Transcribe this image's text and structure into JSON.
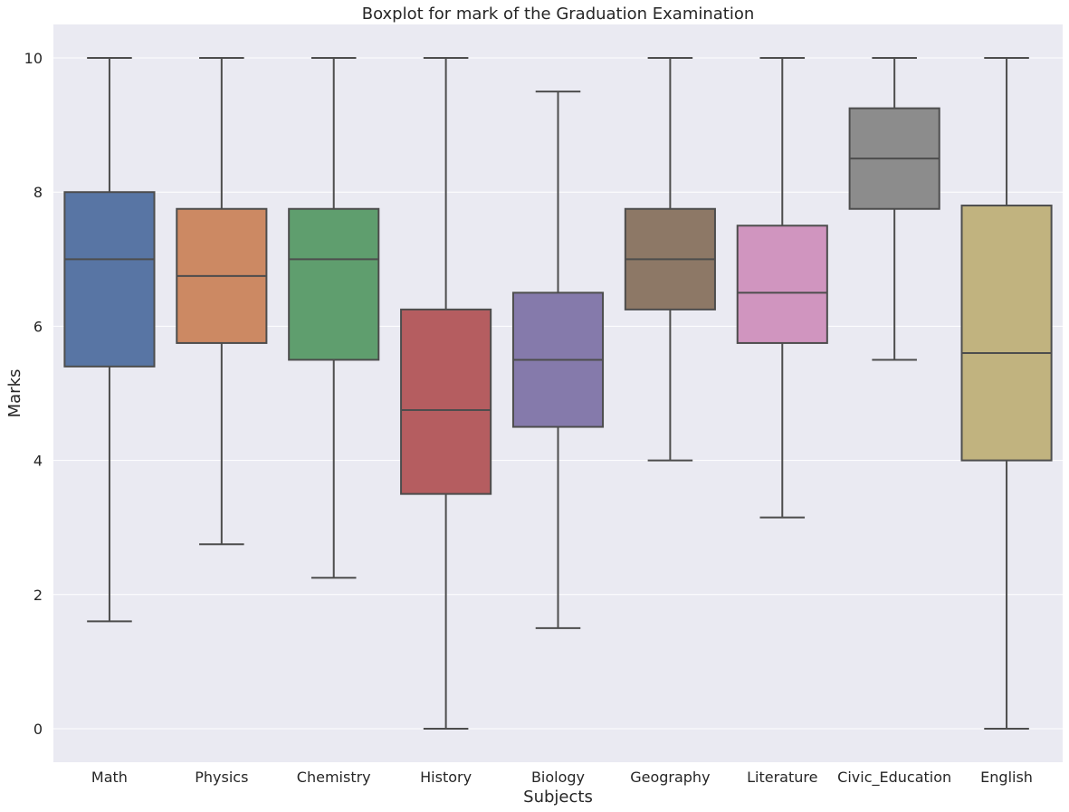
{
  "chart_data": {
    "type": "boxplot",
    "title": "Boxplot for mark of the Graduation Examination",
    "xlabel": "Subjects",
    "ylabel": "Marks",
    "ylim": [
      -0.5,
      10.5
    ],
    "yticks": [
      0,
      2,
      4,
      6,
      8,
      10
    ],
    "grid": true,
    "categories": [
      "Math",
      "Physics",
      "Chemistry",
      "History",
      "Biology",
      "Geography",
      "Literature",
      "Civic_Education",
      "English"
    ],
    "series": [
      {
        "label": "Math",
        "whisker_low": 1.6,
        "q1": 5.4,
        "median": 7.0,
        "q3": 8.0,
        "whisker_high": 10.0,
        "color": "#5875a4"
      },
      {
        "label": "Physics",
        "whisker_low": 2.75,
        "q1": 5.75,
        "median": 6.75,
        "q3": 7.75,
        "whisker_high": 10.0,
        "color": "#cc8963"
      },
      {
        "label": "Chemistry",
        "whisker_low": 2.25,
        "q1": 5.5,
        "median": 7.0,
        "q3": 7.75,
        "whisker_high": 10.0,
        "color": "#5f9e6e"
      },
      {
        "label": "History",
        "whisker_low": 0.0,
        "q1": 3.5,
        "median": 4.75,
        "q3": 6.25,
        "whisker_high": 10.0,
        "color": "#b55d60"
      },
      {
        "label": "Biology",
        "whisker_low": 1.5,
        "q1": 4.5,
        "median": 5.5,
        "q3": 6.5,
        "whisker_high": 9.5,
        "color": "#857aab"
      },
      {
        "label": "Geography",
        "whisker_low": 4.0,
        "q1": 6.25,
        "median": 7.0,
        "q3": 7.75,
        "whisker_high": 10.0,
        "color": "#8d7866"
      },
      {
        "label": "Literature",
        "whisker_low": 3.15,
        "q1": 5.75,
        "median": 6.5,
        "q3": 7.5,
        "whisker_high": 10.0,
        "color": "#d095bf"
      },
      {
        "label": "Civic_Education",
        "whisker_low": 5.5,
        "q1": 7.75,
        "median": 8.5,
        "q3": 9.25,
        "whisker_high": 10.0,
        "color": "#8c8c8c"
      },
      {
        "label": "English",
        "whisker_low": 0.0,
        "q1": 4.0,
        "median": 5.6,
        "q3": 7.8,
        "whisker_high": 10.0,
        "color": "#c1b37f"
      }
    ],
    "colors": {
      "plot_background": "#eaeaf2",
      "grid": "#ffffff",
      "line": "#4d4d4d",
      "text": "#262626"
    }
  }
}
